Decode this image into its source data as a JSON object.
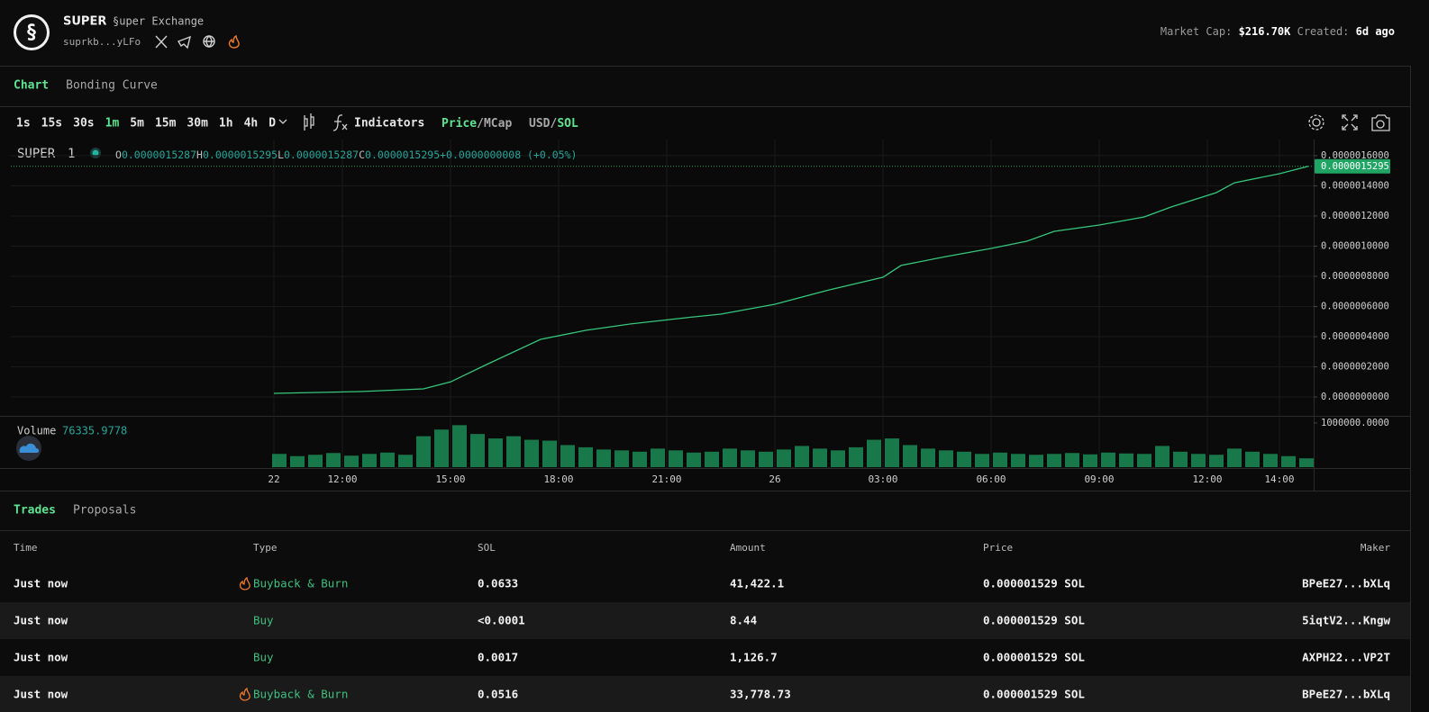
{
  "header": {
    "logo": "§",
    "symbol": "SUPER",
    "name": "§uper Exchange",
    "address": "suprkb...yLFo",
    "market_cap_label": "Market Cap:",
    "market_cap": "$216.70K",
    "created_label": "Created:",
    "created": "6d ago"
  },
  "tabs": {
    "items": [
      "Chart",
      "Bonding Curve"
    ],
    "active": 0
  },
  "toolbar": {
    "intervals": [
      "1s",
      "15s",
      "30s",
      "1m",
      "5m",
      "15m",
      "30m",
      "1h",
      "4h",
      "D"
    ],
    "selected_interval": 3,
    "indicators": "Indicators",
    "price": "Price",
    "separator": "/",
    "mcap": "MCap",
    "usd": "USD",
    "sol": "SOL"
  },
  "legend": {
    "symbol": "SUPER",
    "interval": "1",
    "o_label": "O",
    "o": "0.0000015287",
    "h_label": "H",
    "h": "0.0000015295",
    "l_label": "L",
    "l": "0.0000015287",
    "c_label": "C",
    "c": "0.0000015295",
    "change": "+0.0000000008 (+0.05%)",
    "volume_label": "Volume",
    "volume": "76335.9778"
  },
  "chart_data": [
    {
      "type": "line",
      "color": "#34c77b",
      "x": [
        10.1,
        12.5,
        14.25,
        15,
        16,
        17.5,
        18.75,
        20,
        21.5,
        22.5,
        24,
        25.5,
        27,
        27.5,
        28.75,
        30,
        31,
        31.75,
        33,
        34.25,
        35,
        36.25,
        36.75,
        38,
        38.8
      ],
      "values": [
        2.4e-08,
        3.6e-08,
        5.4e-08,
        1e-07,
        2.15e-07,
        3.82e-07,
        4.42e-07,
        4.84e-07,
        5.25e-07,
        5.49e-07,
        6.15e-07,
        7.1e-07,
        7.94e-07,
        8.72e-07,
        9.31e-07,
        9.85e-07,
        1.033e-06,
        1.098e-06,
        1.14e-06,
        1.194e-06,
        1.26e-06,
        1.355e-06,
        1.42e-06,
        1.48e-06,
        1.5295e-06
      ],
      "last_price": {
        "value": 1.5295e-06,
        "label": "0.0000015295"
      },
      "xlim": [
        2.8,
        38.95
      ],
      "xticks": [
        {
          "value": 10.1,
          "label": "22"
        },
        {
          "value": 12,
          "label": "12:00"
        },
        {
          "value": 15,
          "label": "15:00"
        },
        {
          "value": 18,
          "label": "18:00"
        },
        {
          "value": 21,
          "label": "21:00"
        },
        {
          "value": 24,
          "label": "26"
        },
        {
          "value": 27,
          "label": "03:00"
        },
        {
          "value": 30,
          "label": "06:00"
        },
        {
          "value": 33,
          "label": "09:00"
        },
        {
          "value": 36,
          "label": "12:00"
        },
        {
          "value": 38,
          "label": "14:00"
        }
      ],
      "ylim": [
        -1.25e-07,
        1.695e-06
      ],
      "yticks": [
        {
          "value": 0,
          "label": "0.0000000000"
        },
        {
          "value": 2e-07,
          "label": "0.0000002000"
        },
        {
          "value": 4e-07,
          "label": "0.0000004000"
        },
        {
          "value": 6e-07,
          "label": "0.0000006000"
        },
        {
          "value": 8e-07,
          "label": "0.0000008000"
        },
        {
          "value": 1e-06,
          "label": "0.0000010000"
        },
        {
          "value": 1.2e-06,
          "label": "0.0000012000"
        },
        {
          "value": 1.4e-06,
          "label": "0.0000014000"
        },
        {
          "value": 1.6e-06,
          "label": "0.0000016000"
        }
      ],
      "grid": true
    },
    {
      "type": "bar",
      "color": "#1f9d60",
      "x": [
        10.25,
        10.75,
        11.25,
        11.75,
        12.25,
        12.75,
        13.25,
        13.75,
        14.25,
        14.75,
        15.25,
        15.75,
        16.25,
        16.75,
        17.25,
        17.75,
        18.25,
        18.75,
        19.25,
        19.75,
        20.25,
        20.75,
        21.25,
        21.75,
        22.25,
        22.75,
        23.25,
        23.75,
        24.25,
        24.75,
        25.25,
        25.75,
        26.25,
        26.75,
        27.25,
        27.75,
        28.25,
        28.75,
        29.25,
        29.75,
        30.25,
        30.75,
        31.25,
        31.75,
        32.25,
        32.75,
        33.25,
        33.75,
        34.25,
        34.75,
        35.25,
        35.75,
        36.25,
        36.75,
        37.25,
        37.75,
        38.25,
        38.75
      ],
      "values": [
        300000,
        250000,
        280000,
        320000,
        260000,
        300000,
        330000,
        280000,
        700000,
        850000,
        950000,
        750000,
        650000,
        700000,
        620000,
        600000,
        500000,
        450000,
        400000,
        380000,
        350000,
        420000,
        380000,
        330000,
        350000,
        420000,
        380000,
        350000,
        400000,
        480000,
        420000,
        380000,
        450000,
        620000,
        650000,
        500000,
        420000,
        380000,
        350000,
        300000,
        330000,
        300000,
        280000,
        300000,
        320000,
        290000,
        330000,
        310000,
        300000,
        480000,
        350000,
        300000,
        280000,
        420000,
        350000,
        300000,
        250000,
        200000
      ],
      "xlim": [
        2.8,
        38.95
      ],
      "ylim": [
        0,
        1120000
      ],
      "yticks": [
        {
          "value": 1000000,
          "label": "1000000.0000"
        }
      ]
    }
  ],
  "trades_tabs": {
    "items": [
      "Trades",
      "Proposals"
    ],
    "active": 0
  },
  "table": {
    "columns": [
      "Time",
      "Type",
      "SOL",
      "Amount",
      "Price",
      "Maker"
    ],
    "rows": [
      [
        "Just now",
        "Buyback & Burn",
        "0.0633",
        "41,422.1",
        "0.000001529 SOL",
        "BPeE27...bXLq"
      ],
      [
        "Just now",
        "Buy",
        "<0.0001",
        "8.44",
        "0.000001529 SOL",
        "5iqtV2...Kngw"
      ],
      [
        "Just now",
        "Buy",
        "0.0017",
        "1,126.7",
        "0.000001529 SOL",
        "AXPH22...VP2T"
      ],
      [
        "Just now",
        "Buyback & Burn",
        "0.0516",
        "33,778.73",
        "0.000001529 SOL",
        "BPeE27...bXLq"
      ]
    ]
  }
}
